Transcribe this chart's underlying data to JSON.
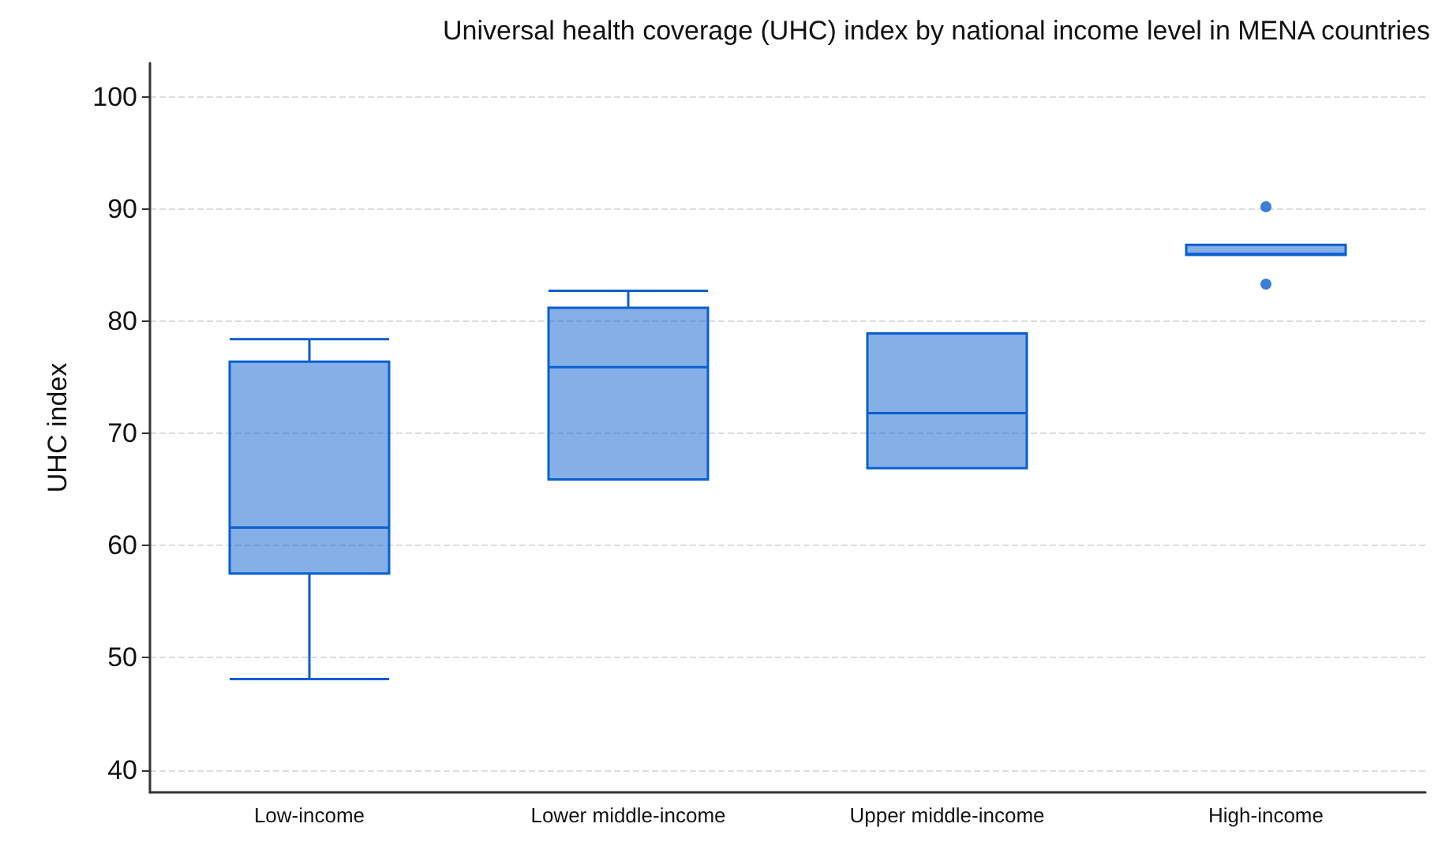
{
  "chart_data": {
    "type": "box",
    "title": "Universal health coverage (UHC) index by national income level in MENA countries",
    "ylabel": "UHC index",
    "categories": [
      "Low-income",
      "Lower middle-income",
      "Upper middle-income",
      "High-income"
    ],
    "boxes": [
      {
        "low": 48.1,
        "q1": 57.5,
        "median": 61.6,
        "q3": 76.4,
        "high": 78.4
      },
      {
        "low": 65.9,
        "q1": 65.9,
        "median": 75.9,
        "q3": 81.2,
        "high": 82.7
      },
      {
        "low": 66.9,
        "q1": 66.9,
        "median": 71.8,
        "q3": 78.9,
        "high": 78.9
      },
      {
        "low": 85.9,
        "q1": 85.9,
        "median": 86,
        "q3": 86.8,
        "high": 86.8,
        "outliers": [
          90.2,
          83.3
        ]
      }
    ],
    "color": "#0a5fd0",
    "ylim": [
      38,
      103
    ],
    "yticks": [
      40,
      50,
      60,
      70,
      80,
      90,
      100
    ],
    "grid": "y"
  }
}
